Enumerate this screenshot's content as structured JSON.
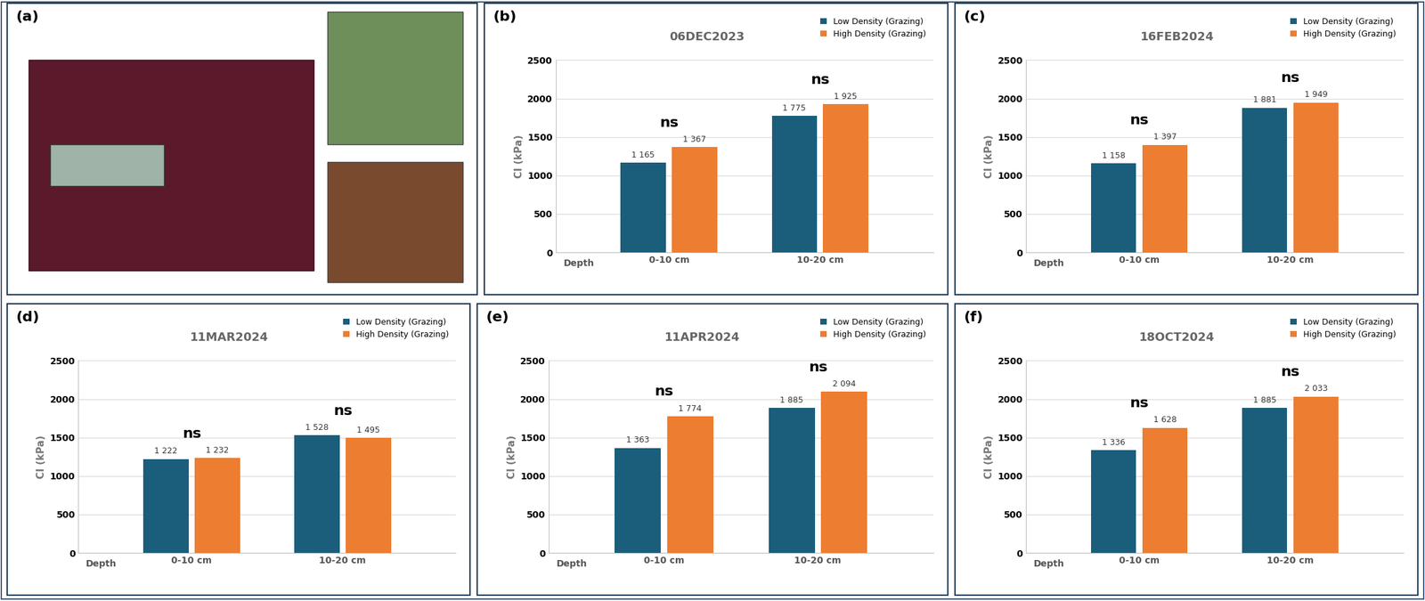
{
  "panel_a": {
    "label": "(a)"
  },
  "chart_data": [
    {
      "type": "bar",
      "panel": "(b)",
      "title": "06DEC2023",
      "xlabel": "Depth",
      "ylabel": "CI (kPa)",
      "categories": [
        "0-10 cm",
        "10-20 cm"
      ],
      "series": [
        {
          "name": "Low Density (Grazing)",
          "color": "#1b5e7b",
          "values": [
            1165,
            1775
          ],
          "value_labels": [
            "1 165",
            "1 775"
          ]
        },
        {
          "name": "High Density (Grazing)",
          "color": "#ed7d31",
          "values": [
            1367,
            1925
          ],
          "value_labels": [
            "1 367",
            "1 925"
          ]
        }
      ],
      "annotations": [
        "ns",
        "ns"
      ],
      "ylim": [
        0,
        2500
      ],
      "yticks": [
        0,
        500,
        1000,
        1500,
        2000,
        2500
      ],
      "grid": true,
      "legend": "upper right",
      "data_labels": true
    },
    {
      "type": "bar",
      "panel": "(c)",
      "title": "16FEB2024",
      "xlabel": "Depth",
      "ylabel": "CI (kPa)",
      "categories": [
        "0-10 cm",
        "10-20 cm"
      ],
      "series": [
        {
          "name": "Low Density (Grazing)",
          "color": "#1b5e7b",
          "values": [
            1158,
            1881
          ],
          "value_labels": [
            "1 158",
            "1 881"
          ]
        },
        {
          "name": "High Density (Grazing)",
          "color": "#ed7d31",
          "values": [
            1397,
            1949
          ],
          "value_labels": [
            "1 397",
            "1 949"
          ]
        }
      ],
      "annotations": [
        "ns",
        "ns"
      ],
      "ylim": [
        0,
        2500
      ],
      "yticks": [
        0,
        500,
        1000,
        1500,
        2000,
        2500
      ],
      "grid": true,
      "legend": "upper right",
      "data_labels": true
    },
    {
      "type": "bar",
      "panel": "(d)",
      "title": "11MAR2024",
      "xlabel": "Depth",
      "ylabel": "CI (kPa)",
      "categories": [
        "0-10 cm",
        "10-20 cm"
      ],
      "series": [
        {
          "name": "Low Density (Grazing)",
          "color": "#1b5e7b",
          "values": [
            1222,
            1528
          ],
          "value_labels": [
            "1 222",
            "1 528"
          ]
        },
        {
          "name": "High Density (Grazing)",
          "color": "#ed7d31",
          "values": [
            1232,
            1495
          ],
          "value_labels": [
            "1 232",
            "1 495"
          ]
        }
      ],
      "annotations": [
        "ns",
        "ns"
      ],
      "ylim": [
        0,
        2500
      ],
      "yticks": [
        0,
        500,
        1000,
        1500,
        2000,
        2500
      ],
      "grid": true,
      "legend": "upper right",
      "data_labels": true
    },
    {
      "type": "bar",
      "panel": "(e)",
      "title": "11APR2024",
      "xlabel": "Depth",
      "ylabel": "CI (kPa)",
      "categories": [
        "0-10 cm",
        "10-20 cm"
      ],
      "series": [
        {
          "name": "Low Density (Grazing)",
          "color": "#1b5e7b",
          "values": [
            1363,
            1885
          ],
          "value_labels": [
            "1 363",
            "1 885"
          ]
        },
        {
          "name": "High Density (Grazing)",
          "color": "#ed7d31",
          "values": [
            1774,
            2094
          ],
          "value_labels": [
            "1 774",
            "2 094"
          ]
        }
      ],
      "annotations": [
        "ns",
        "ns"
      ],
      "ylim": [
        0,
        2500
      ],
      "yticks": [
        0,
        500,
        1000,
        1500,
        2000,
        2500
      ],
      "grid": true,
      "legend": "upper right",
      "data_labels": true
    },
    {
      "type": "bar",
      "panel": "(f)",
      "title": "18OCT2024",
      "xlabel": "Depth",
      "ylabel": "CI (kPa)",
      "categories": [
        "0-10 cm",
        "10-20 cm"
      ],
      "series": [
        {
          "name": "Low Density (Grazing)",
          "color": "#1b5e7b",
          "values": [
            1336,
            1885
          ],
          "value_labels": [
            "1 336",
            "1 885"
          ]
        },
        {
          "name": "High Density (Grazing)",
          "color": "#ed7d31",
          "values": [
            1628,
            2033
          ],
          "value_labels": [
            "1 628",
            "2 033"
          ]
        }
      ],
      "annotations": [
        "ns",
        "ns"
      ],
      "ylim": [
        0,
        2500
      ],
      "yticks": [
        0,
        500,
        1000,
        1500,
        2000,
        2500
      ],
      "grid": true,
      "legend": "upper right",
      "data_labels": true
    }
  ]
}
